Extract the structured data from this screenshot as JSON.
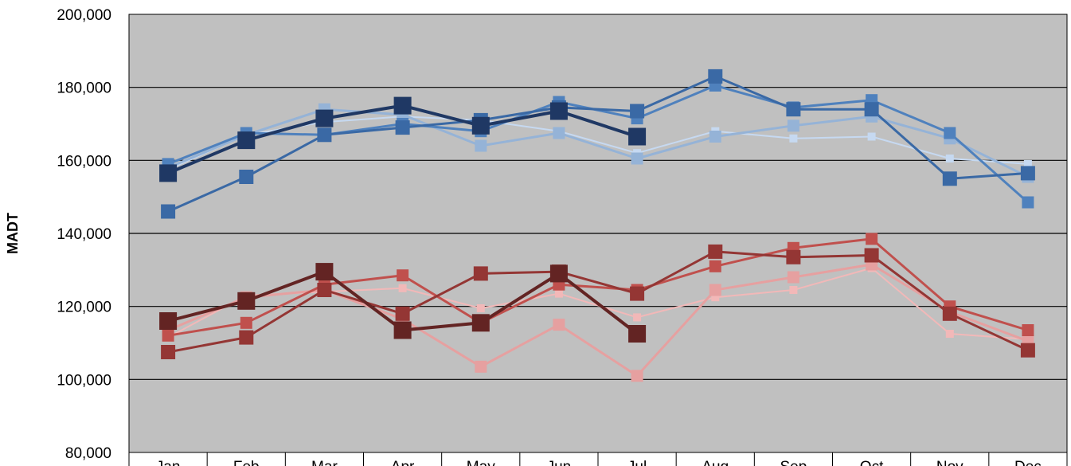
{
  "chart_data": {
    "type": "line",
    "title": "",
    "xlabel": "",
    "ylabel": "MADT",
    "ylim": [
      80000,
      200000
    ],
    "yticks": [
      80000,
      100000,
      120000,
      140000,
      160000,
      180000,
      200000
    ],
    "ytick_labels": [
      "80,000",
      "100,000",
      "120,000",
      "140,000",
      "160,000",
      "180,000",
      "200,000"
    ],
    "categories": [
      "Jan",
      "Feb",
      "Mar",
      "Apr",
      "May",
      "Jun",
      "Jul",
      "Aug",
      "Sep",
      "Oct",
      "Nov",
      "Dec"
    ],
    "grid": true,
    "legend": "none",
    "plot_background": "#c0c0c0",
    "series": [
      {
        "color": "#c6d9f1",
        "width": 2,
        "marker": 10,
        "values": [
          157500,
          167000,
          170500,
          172000,
          171000,
          168000,
          162000,
          168000,
          166000,
          166500,
          160500,
          159000
        ]
      },
      {
        "color": "#95b3d7",
        "width": 3,
        "marker": 15,
        "values": [
          158000,
          167000,
          174000,
          172500,
          164000,
          167500,
          160500,
          166500,
          169500,
          172000,
          166000,
          155500
        ]
      },
      {
        "color": "#4f81bd",
        "width": 3,
        "marker": 15,
        "values": [
          159000,
          167500,
          167000,
          170000,
          168000,
          176000,
          171500,
          180500,
          174500,
          176500,
          167500,
          148500
        ]
      },
      {
        "color": "#3a69a5",
        "width": 3,
        "marker": 18,
        "values": [
          146000,
          155500,
          167000,
          169000,
          171000,
          174500,
          173500,
          183000,
          174000,
          174000,
          155000,
          156500
        ]
      },
      {
        "color": "#1f3864",
        "width": 4,
        "marker": 22,
        "values": [
          156500,
          165500,
          171500,
          175000,
          169500,
          173500,
          166500,
          null,
          null,
          null,
          null,
          null
        ]
      },
      {
        "color": "#f2b8b8",
        "width": 2,
        "marker": 10,
        "values": [
          111500,
          123000,
          124000,
          125000,
          119500,
          123500,
          117000,
          122500,
          124500,
          130500,
          112500,
          111000
        ]
      },
      {
        "color": "#e6a0a0",
        "width": 3,
        "marker": 15,
        "values": [
          113500,
          122500,
          124500,
          116500,
          103500,
          115000,
          101000,
          124500,
          128000,
          131500,
          118500,
          110500
        ]
      },
      {
        "color": "#c0504d",
        "width": 3,
        "marker": 15,
        "values": [
          112000,
          115500,
          126000,
          128500,
          115500,
          126000,
          124500,
          131000,
          136000,
          138500,
          120000,
          113500
        ]
      },
      {
        "color": "#943634",
        "width": 3,
        "marker": 18,
        "values": [
          107500,
          111500,
          124500,
          118000,
          129000,
          129500,
          123500,
          135000,
          133500,
          134000,
          118000,
          108000
        ]
      },
      {
        "color": "#632423",
        "width": 4,
        "marker": 22,
        "values": [
          116000,
          121500,
          129500,
          113500,
          115500,
          129000,
          112500,
          null,
          null,
          null,
          null,
          null
        ]
      }
    ]
  }
}
